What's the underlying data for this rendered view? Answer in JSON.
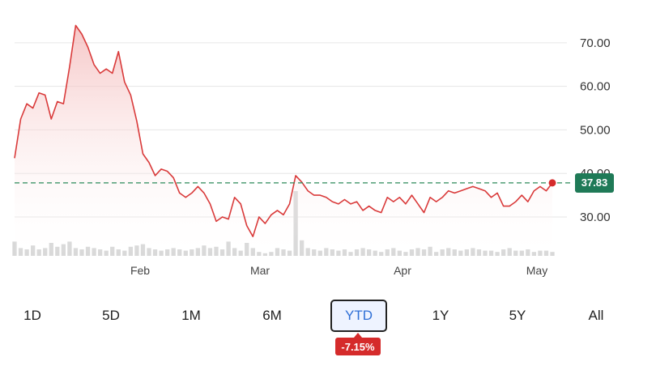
{
  "chart_data": {
    "type": "line",
    "x_labels": [
      "Feb",
      "Mar",
      "Apr",
      "May"
    ],
    "y_ticks": [
      30,
      40,
      50,
      60,
      70
    ],
    "y_tick_labels": [
      "30.00",
      "40.00",
      "50.00",
      "60.00",
      "70.00"
    ],
    "ylim": [
      22,
      75
    ],
    "current_price": 37.83,
    "current_price_label": "37.83",
    "price_series": [
      43.5,
      52.5,
      56,
      55,
      58.5,
      58,
      52.5,
      56.5,
      56,
      64.5,
      74,
      72,
      69,
      65,
      63,
      64,
      63,
      68,
      61,
      58,
      52,
      44.5,
      42.5,
      39.5,
      41,
      40.5,
      39,
      35.5,
      34.5,
      35.5,
      37,
      35.5,
      33,
      29,
      30,
      29.5,
      34.5,
      33,
      28,
      25.5,
      30,
      28.5,
      30.5,
      31.5,
      30.5,
      33,
      39.5,
      38,
      36,
      35,
      35,
      34.5,
      33.5,
      33,
      34,
      33,
      33.5,
      31.5,
      32.5,
      31.5,
      31,
      34.5,
      33.5,
      34.5,
      33,
      35,
      33,
      31,
      34.5,
      33.5,
      34.5,
      36,
      35.5,
      36,
      36.5,
      37,
      36.5,
      36,
      34.5,
      35.5,
      32.5,
      32.5,
      33.5,
      35,
      33.5,
      36,
      37,
      36,
      37.83
    ],
    "volume_series": [
      22,
      12,
      10,
      16,
      10,
      12,
      20,
      14,
      18,
      22,
      12,
      10,
      14,
      12,
      10,
      8,
      14,
      10,
      8,
      14,
      16,
      18,
      12,
      10,
      8,
      10,
      12,
      10,
      8,
      10,
      12,
      16,
      12,
      14,
      10,
      22,
      12,
      8,
      20,
      12,
      6,
      4,
      6,
      12,
      10,
      8,
      100,
      24,
      12,
      10,
      8,
      12,
      10,
      8,
      10,
      6,
      10,
      12,
      10,
      8,
      6,
      10,
      12,
      8,
      6,
      10,
      12,
      10,
      14,
      6,
      10,
      12,
      10,
      8,
      10,
      12,
      10,
      8,
      8,
      6,
      10,
      12,
      8,
      8,
      10,
      6,
      8,
      8,
      6
    ],
    "colors": {
      "line": "#d93a3a",
      "fill": "#f6c4c4",
      "volume": "#d7d7d7",
      "grid": "#e6e6e6",
      "dash": "#2b8a5a",
      "badge": "#1f7a57"
    }
  },
  "range_tabs": [
    "1D",
    "5D",
    "1M",
    "6M",
    "YTD",
    "1Y",
    "5Y",
    "All"
  ],
  "active_range": "YTD",
  "change_badge": "-7.15%"
}
